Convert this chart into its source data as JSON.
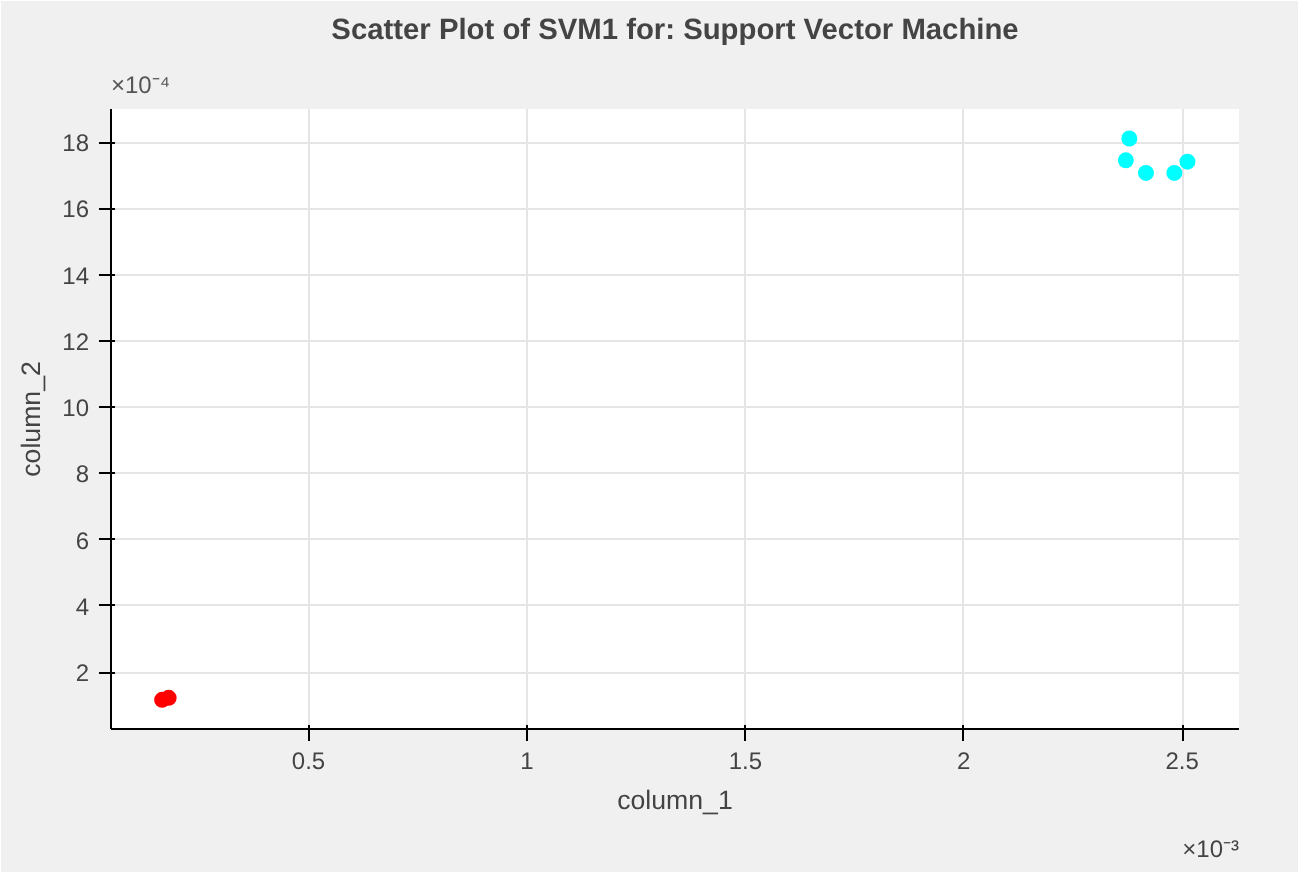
{
  "chart_data": {
    "type": "scatter",
    "title": "Scatter Plot of SVM1 for: Support Vector Machine",
    "xlabel": "column_1",
    "ylabel": "column_2",
    "xlim": [
      0.048,
      2.63
    ],
    "ylim": [
      0.28,
      19.0
    ],
    "xticks": [
      0.5,
      1,
      1.5,
      2,
      2.5
    ],
    "yticks": [
      2,
      4,
      6,
      8,
      10,
      12,
      14,
      16,
      18
    ],
    "annotations": [
      "×10⁻³",
      "×10⁻⁴"
    ],
    "grid": true,
    "marker": "circle",
    "series": [
      {
        "color": "#00ffff",
        "x": [
          2.379,
          2.371,
          2.417,
          2.482,
          2.512
        ],
        "values": [
          18.11,
          17.45,
          17.07,
          17.07,
          17.41
        ]
      },
      {
        "color": "#ff0000",
        "x": [
          0.165,
          0.18
        ],
        "values": [
          1.16,
          1.22
        ]
      }
    ]
  }
}
